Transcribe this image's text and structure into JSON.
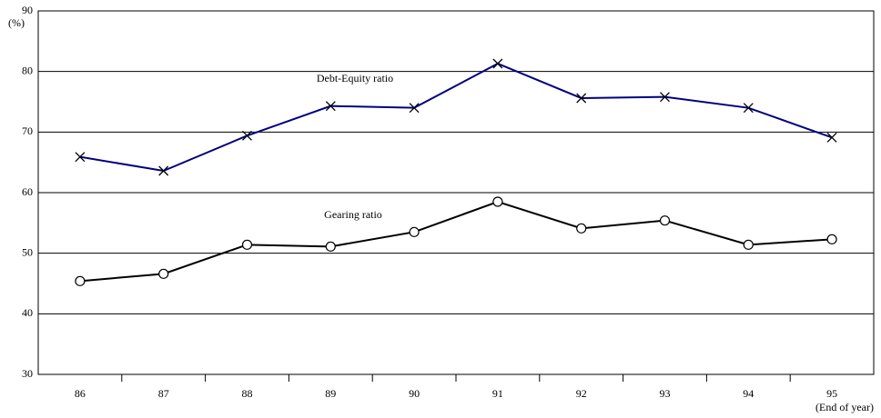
{
  "chart_data": {
    "type": "line",
    "y_unit": "(%)",
    "x_unit": "(End of year)",
    "categories": [
      "86",
      "87",
      "88",
      "89",
      "90",
      "91",
      "92",
      "93",
      "94",
      "95"
    ],
    "series": [
      {
        "name": "Debt-Equity ratio",
        "color": "#000080",
        "marker": "cross",
        "values": [
          65.9,
          63.6,
          69.4,
          74.3,
          74.0,
          81.3,
          75.6,
          75.8,
          74.0,
          69.1
        ]
      },
      {
        "name": "Gearing ratio",
        "color": "#000000",
        "marker": "circle",
        "values": [
          45.4,
          46.6,
          51.4,
          51.1,
          53.5,
          58.5,
          54.1,
          55.4,
          51.4,
          52.3
        ]
      }
    ],
    "ylim": [
      30,
      90
    ],
    "yticks": [
      30,
      40,
      50,
      60,
      70,
      80,
      90
    ],
    "grid": true
  }
}
